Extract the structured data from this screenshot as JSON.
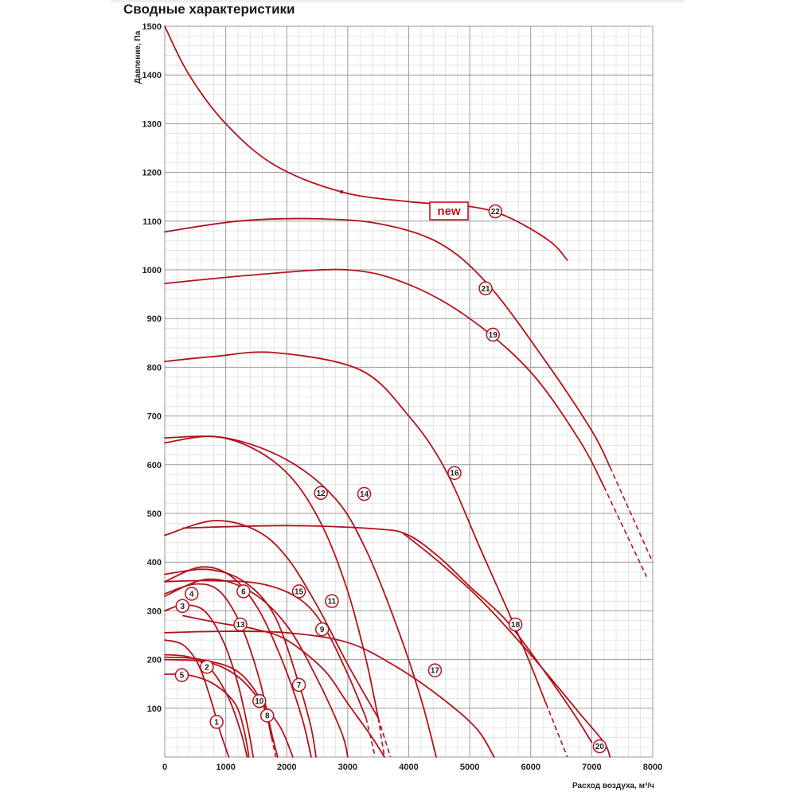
{
  "page": {
    "title": "Сводные характеристики"
  },
  "colors": {
    "curve": "#b5121b",
    "grid_major": "#9a9a9a",
    "grid_minor": "#d6d6d6",
    "marker_fill": "#ffffff",
    "new_badge": "#c1121f"
  },
  "badge": {
    "text": "new"
  },
  "chart_data": {
    "type": "line",
    "xlabel": "Расход воздуха, м³/ч",
    "ylabel": "Давление, Па",
    "xlim": [
      0,
      8000
    ],
    "ylim": [
      0,
      1500
    ],
    "xticks": [
      "0",
      "1000",
      "2000",
      "3000",
      "4000",
      "5000",
      "6000",
      "7000",
      "8000"
    ],
    "yticks": [
      "100",
      "200",
      "300",
      "400",
      "500",
      "600",
      "700",
      "800",
      "900",
      "1000",
      "1100",
      "1200",
      "1300",
      "1400",
      "1500"
    ],
    "grid": true,
    "series": [
      {
        "name": "1",
        "label_at": [
          850,
          72
        ],
        "points": [
          [
            0,
            240
          ],
          [
            300,
            230
          ],
          [
            550,
            190
          ],
          [
            750,
            120
          ],
          [
            900,
            55
          ],
          [
            1050,
            0
          ]
        ]
      },
      {
        "name": "2",
        "label_at": [
          690,
          185
        ],
        "points": [
          [
            0,
            210
          ],
          [
            400,
            205
          ],
          [
            750,
            180
          ],
          [
            1050,
            120
          ],
          [
            1250,
            50
          ],
          [
            1350,
            0
          ]
        ]
      },
      {
        "name": "3",
        "label_at": [
          290,
          310
        ],
        "points": [
          [
            0,
            300
          ],
          [
            300,
            312
          ],
          [
            650,
            300
          ],
          [
            950,
            240
          ],
          [
            1200,
            150
          ],
          [
            1380,
            50
          ],
          [
            1450,
            0
          ]
        ]
      },
      {
        "name": "4",
        "label_at": [
          440,
          335
        ],
        "points": [
          [
            0,
            335
          ],
          [
            500,
            355
          ],
          [
            900,
            340
          ],
          [
            1250,
            270
          ],
          [
            1550,
            160
          ],
          [
            1750,
            50
          ],
          [
            1850,
            0
          ]
        ]
      },
      {
        "name": "5",
        "label_at": [
          280,
          168
        ],
        "points": [
          [
            0,
            170
          ],
          [
            400,
            168
          ],
          [
            800,
            150
          ],
          [
            1150,
            110
          ],
          [
            1300,
            55
          ],
          [
            1380,
            0
          ]
        ]
      },
      {
        "name": "6",
        "label_at": [
          1290,
          340
        ],
        "points": [
          [
            0,
            360
          ],
          [
            600,
            390
          ],
          [
            1100,
            370
          ],
          [
            1550,
            300
          ],
          [
            1950,
            190
          ],
          [
            2250,
            80
          ],
          [
            2400,
            0
          ]
        ]
      },
      {
        "name": "7",
        "label_at": [
          2200,
          148
        ],
        "points": [
          [
            0,
            375
          ],
          [
            700,
            385
          ],
          [
            1300,
            360
          ],
          [
            1800,
            290
          ],
          [
            2200,
            150
          ],
          [
            2400,
            60
          ],
          [
            2480,
            0
          ]
        ]
      },
      {
        "name": "8",
        "label_at": [
          1680,
          85
        ],
        "points": [
          [
            0,
            205
          ],
          [
            600,
            200
          ],
          [
            1200,
            175
          ],
          [
            1600,
            110
          ],
          [
            1750,
            40
          ]
        ],
        "dashed": [
          [
            1750,
            40
          ],
          [
            1820,
            0
          ]
        ]
      },
      {
        "name": "9",
        "label_at": [
          2580,
          262
        ],
        "points": [
          [
            0,
            330
          ],
          [
            700,
            365
          ],
          [
            1400,
            340
          ],
          [
            2000,
            270
          ],
          [
            2500,
            160
          ],
          [
            2900,
            50
          ],
          [
            3000,
            0
          ]
        ]
      },
      {
        "name": "10",
        "label_at": [
          1550,
          115
        ],
        "points": [
          [
            0,
            200
          ],
          [
            700,
            195
          ],
          [
            1200,
            165
          ],
          [
            1600,
            110
          ],
          [
            1900,
            60
          ],
          [
            2100,
            0
          ]
        ]
      },
      {
        "name": "11",
        "label_at": [
          2740,
          320
        ],
        "points": [
          [
            0,
            360
          ],
          [
            800,
            362
          ],
          [
            1600,
            355
          ],
          [
            2200,
            325
          ],
          [
            2600,
            270
          ],
          [
            3000,
            170
          ],
          [
            3300,
            80
          ]
        ],
        "dashed": [
          [
            3300,
            80
          ],
          [
            3450,
            0
          ]
        ]
      },
      {
        "name": "12",
        "label_at": [
          2560,
          542
        ],
        "points": [
          [
            0,
            645
          ],
          [
            800,
            658
          ],
          [
            1500,
            630
          ],
          [
            2100,
            570
          ],
          [
            2600,
            470
          ],
          [
            3000,
            340
          ],
          [
            3300,
            200
          ],
          [
            3500,
            80
          ]
        ],
        "dashed": [
          [
            3500,
            80
          ],
          [
            3600,
            0
          ]
        ]
      },
      {
        "name": "13",
        "label_at": [
          1240,
          272
        ],
        "points": [
          [
            300,
            290
          ],
          [
            900,
            275
          ],
          [
            1500,
            262
          ],
          [
            2000,
            240
          ],
          [
            2600,
            180
          ],
          [
            3000,
            110
          ],
          [
            3400,
            40
          ],
          [
            3600,
            0
          ]
        ]
      },
      {
        "name": "14",
        "label_at": [
          3270,
          540
        ],
        "points": [
          [
            0,
            655
          ],
          [
            1000,
            655
          ],
          [
            2000,
            610
          ],
          [
            2800,
            530
          ],
          [
            3300,
            425
          ],
          [
            3800,
            270
          ],
          [
            4200,
            120
          ],
          [
            4450,
            0
          ]
        ]
      },
      {
        "name": "15",
        "label_at": [
          2200,
          340
        ],
        "points": [
          [
            0,
            455
          ],
          [
            800,
            485
          ],
          [
            1500,
            465
          ],
          [
            2000,
            410
          ],
          [
            2500,
            310
          ],
          [
            3000,
            190
          ],
          [
            3500,
            80
          ]
        ],
        "dashed": [
          [
            3500,
            80
          ],
          [
            3700,
            0
          ]
        ]
      },
      {
        "name": "16",
        "label_at": [
          4750,
          583
        ],
        "points": [
          [
            0,
            812
          ],
          [
            800,
            822
          ],
          [
            1800,
            830
          ],
          [
            3200,
            795
          ],
          [
            4000,
            700
          ],
          [
            4600,
            590
          ],
          [
            5200,
            420
          ],
          [
            5800,
            250
          ],
          [
            6250,
            110
          ]
        ],
        "dashed": [
          [
            6250,
            110
          ],
          [
            6600,
            0
          ]
        ]
      },
      {
        "name": "17",
        "label_at": [
          4430,
          178
        ],
        "points": [
          [
            0,
            255
          ],
          [
            1000,
            258
          ],
          [
            2000,
            255
          ],
          [
            3000,
            235
          ],
          [
            3800,
            185
          ],
          [
            4500,
            125
          ],
          [
            5100,
            60
          ],
          [
            5400,
            0
          ]
        ]
      },
      {
        "name": "18",
        "label_at": [
          5750,
          272
        ],
        "points": [
          [
            300,
            470
          ],
          [
            2000,
            475
          ],
          [
            3500,
            468
          ],
          [
            4000,
            455
          ],
          [
            4500,
            410
          ],
          [
            5000,
            350
          ],
          [
            5600,
            280
          ],
          [
            6200,
            180
          ],
          [
            6700,
            90
          ],
          [
            7000,
            30
          ]
        ]
      },
      {
        "name": "19",
        "label_at": [
          5380,
          867
        ],
        "points": [
          [
            0,
            972
          ],
          [
            1500,
            990
          ],
          [
            3000,
            1000
          ],
          [
            4000,
            970
          ],
          [
            5000,
            900
          ],
          [
            6000,
            790
          ],
          [
            6800,
            650
          ],
          [
            7200,
            555
          ]
        ],
        "dashed": [
          [
            7200,
            555
          ],
          [
            7900,
            370
          ]
        ]
      },
      {
        "name": "20",
        "label_at": [
          7130,
          22
        ],
        "points": [
          [
            3900,
            460
          ],
          [
            4500,
            400
          ],
          [
            5200,
            320
          ],
          [
            6000,
            210
          ],
          [
            6800,
            90
          ],
          [
            7200,
            30
          ],
          [
            7300,
            0
          ]
        ]
      },
      {
        "name": "21",
        "label_at": [
          5260,
          962
        ],
        "points": [
          [
            0,
            1078
          ],
          [
            1200,
            1100
          ],
          [
            2400,
            1105
          ],
          [
            3500,
            1095
          ],
          [
            4500,
            1055
          ],
          [
            5300,
            970
          ],
          [
            6200,
            820
          ],
          [
            7000,
            670
          ],
          [
            7300,
            595
          ]
        ],
        "dashed": [
          [
            7300,
            595
          ],
          [
            8000,
            400
          ]
        ]
      },
      {
        "name": "22",
        "label_at": [
          5420,
          1120
        ],
        "points": [
          [
            0,
            1500
          ],
          [
            400,
            1400
          ],
          [
            1000,
            1300
          ],
          [
            1800,
            1215
          ],
          [
            2900,
            1160
          ],
          [
            4000,
            1140
          ],
          [
            5000,
            1130
          ],
          [
            5600,
            1110
          ],
          [
            6300,
            1060
          ],
          [
            6600,
            1020
          ]
        ]
      }
    ]
  }
}
